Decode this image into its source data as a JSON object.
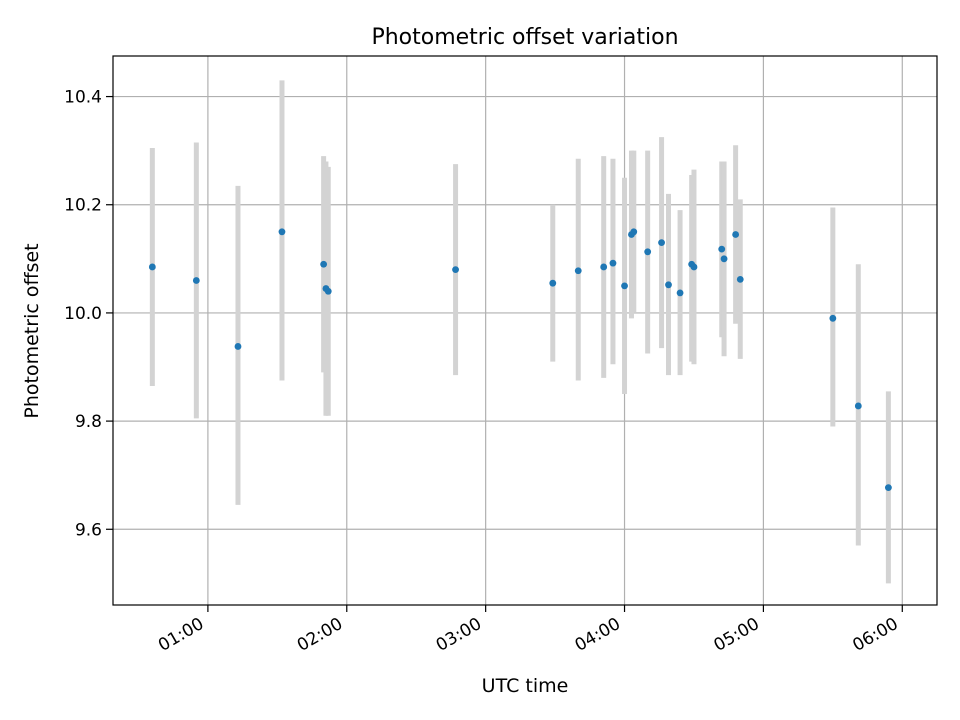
{
  "chart_data": {
    "type": "scatter",
    "title": "Photometric offset variation",
    "xlabel": "UTC time",
    "ylabel": "Photometric offset",
    "x_axis": "time",
    "xlim": [
      "00:19",
      "06:15"
    ],
    "ylim": [
      9.46,
      10.475
    ],
    "xticks": [
      "01:00",
      "02:00",
      "03:00",
      "04:00",
      "05:00",
      "06:00"
    ],
    "yticks": [
      "9.6",
      "9.8",
      "10.0",
      "10.2",
      "10.4"
    ],
    "grid": true,
    "errorbar_color": "#d3d3d3",
    "marker_color": "#1f77b4",
    "points": [
      {
        "t": "00:36",
        "y": 10.085,
        "lo": 9.865,
        "hi": 10.305
      },
      {
        "t": "00:55",
        "y": 10.06,
        "lo": 9.805,
        "hi": 10.315
      },
      {
        "t": "01:13",
        "y": 9.938,
        "lo": 9.645,
        "hi": 10.235
      },
      {
        "t": "01:32",
        "y": 10.15,
        "lo": 9.875,
        "hi": 10.43
      },
      {
        "t": "01:50",
        "y": 10.09,
        "lo": 9.89,
        "hi": 10.29
      },
      {
        "t": "01:51",
        "y": 10.045,
        "lo": 9.81,
        "hi": 10.28
      },
      {
        "t": "01:52",
        "y": 10.04,
        "lo": 9.81,
        "hi": 10.27
      },
      {
        "t": "02:47",
        "y": 10.08,
        "lo": 9.885,
        "hi": 10.275
      },
      {
        "t": "03:29",
        "y": 10.055,
        "lo": 9.91,
        "hi": 10.2
      },
      {
        "t": "03:40",
        "y": 10.078,
        "lo": 9.875,
        "hi": 10.285
      },
      {
        "t": "03:51",
        "y": 10.085,
        "lo": 9.88,
        "hi": 10.29
      },
      {
        "t": "03:55",
        "y": 10.092,
        "lo": 9.905,
        "hi": 10.285
      },
      {
        "t": "04:00",
        "y": 10.05,
        "lo": 9.85,
        "hi": 10.25
      },
      {
        "t": "04:03",
        "y": 10.145,
        "lo": 9.99,
        "hi": 10.3
      },
      {
        "t": "04:04",
        "y": 10.15,
        "lo": 10.0,
        "hi": 10.3
      },
      {
        "t": "04:10",
        "y": 10.113,
        "lo": 9.925,
        "hi": 10.3
      },
      {
        "t": "04:16",
        "y": 10.13,
        "lo": 9.935,
        "hi": 10.325
      },
      {
        "t": "04:19",
        "y": 10.052,
        "lo": 9.885,
        "hi": 10.22
      },
      {
        "t": "04:24",
        "y": 10.037,
        "lo": 9.885,
        "hi": 10.19
      },
      {
        "t": "04:29",
        "y": 10.09,
        "lo": 9.91,
        "hi": 10.255
      },
      {
        "t": "04:30",
        "y": 10.085,
        "lo": 9.905,
        "hi": 10.265
      },
      {
        "t": "04:42",
        "y": 10.118,
        "lo": 9.955,
        "hi": 10.28
      },
      {
        "t": "04:43",
        "y": 10.1,
        "lo": 9.92,
        "hi": 10.28
      },
      {
        "t": "04:48",
        "y": 10.145,
        "lo": 9.98,
        "hi": 10.31
      },
      {
        "t": "04:50",
        "y": 10.062,
        "lo": 9.915,
        "hi": 10.21
      },
      {
        "t": "05:30",
        "y": 9.99,
        "lo": 9.79,
        "hi": 10.195
      },
      {
        "t": "05:41",
        "y": 9.828,
        "lo": 9.57,
        "hi": 10.09
      },
      {
        "t": "05:54",
        "y": 9.677,
        "lo": 9.5,
        "hi": 9.855
      }
    ]
  }
}
